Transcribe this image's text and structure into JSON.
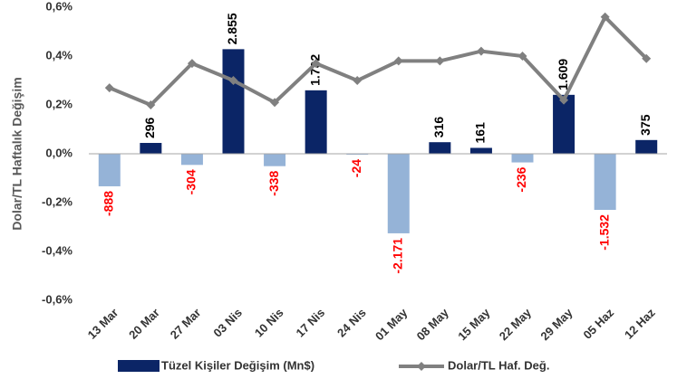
{
  "chart_data": {
    "type": "bar_line",
    "y_label": "Dolar/TL  Haftalık  Değişim",
    "categories": [
      "13 Mar",
      "20 Mar",
      "27 Mar",
      "03 Nis",
      "10 Nis",
      "17 Nis",
      "24 Nis",
      "01 May",
      "08 May",
      "15 May",
      "22 May",
      "29 May",
      "05 Haz",
      "12 Haz"
    ],
    "ylim": [
      -0.6,
      0.6
    ],
    "yticks": [
      {
        "value": -0.6,
        "label": "-0,6%"
      },
      {
        "value": -0.4,
        "label": "-0,4%"
      },
      {
        "value": -0.2,
        "label": "-0,2%"
      },
      {
        "value": 0,
        "label": "0,0%"
      },
      {
        "value": 0.2,
        "label": "0,2%"
      },
      {
        "value": 0.4,
        "label": "0,4%"
      },
      {
        "value": 0.6,
        "label": "0,6%"
      }
    ],
    "y2lim": [
      -4000,
      4000
    ],
    "series": [
      {
        "name": "Tüzel Kişiler Değişim (Mn$)",
        "type": "bar",
        "axis": "y2",
        "color": "#0b2566",
        "negative_color": "#95b3d7",
        "label_color": "#000000",
        "negative_label_color": "#ff0000",
        "values": [
          -888,
          296,
          -304,
          2855,
          -338,
          1732,
          -24,
          -2171,
          316,
          161,
          -236,
          1609,
          -1532,
          375
        ],
        "value_labels": [
          "-888",
          "296",
          "-304",
          "2.855",
          "-338",
          "1.732",
          "-24",
          "-2.171",
          "316",
          "161",
          "-236",
          "1.609",
          "-1.532",
          "375"
        ]
      },
      {
        "name": "Dolar/TL Haf. Değ.",
        "type": "line",
        "color": "#808080",
        "values": [
          0.27,
          0.2,
          0.37,
          0.3,
          0.21,
          0.37,
          0.3,
          0.38,
          0.38,
          0.42,
          0.4,
          0.22,
          0.56,
          0.39
        ]
      }
    ]
  }
}
